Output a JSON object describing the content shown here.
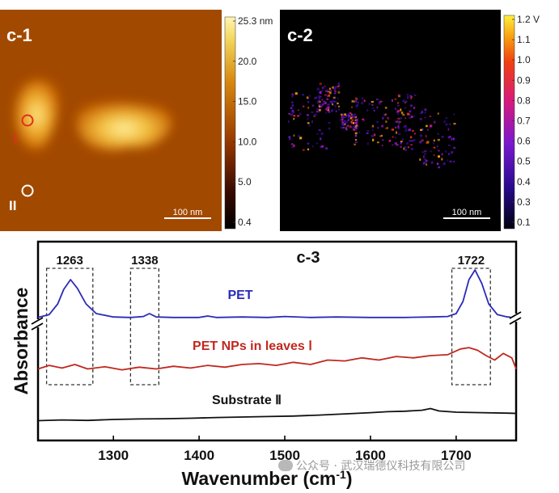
{
  "panels": {
    "c1": {
      "label": "c-1",
      "colorbar_ticks": [
        "25.3 nm",
        "20.0",
        "15.0",
        "10.0",
        "5.0",
        "0.4"
      ],
      "scalebar": "100 nm",
      "markers": [
        {
          "label": "I",
          "color": "#e0301e"
        },
        {
          "label": "II",
          "color": "#ffffff"
        }
      ]
    },
    "c2": {
      "label": "c-2",
      "colorbar_ticks": [
        "1.2 V",
        "1.1",
        "1.0",
        "0.9",
        "0.8",
        "0.7",
        "0.6",
        "0.5",
        "0.4",
        "0.3",
        "0.1"
      ],
      "scalebar": "100 nm"
    }
  },
  "chart_data": {
    "type": "line",
    "title": "c-3",
    "xlabel": "Wavenumber (cm",
    "xlabel_sup": "-1",
    "xlabel_close": ")",
    "ylabel": "Absorbance",
    "xlim": [
      1212,
      1770
    ],
    "xticks": [
      "1300",
      "1400",
      "1500",
      "1600",
      "1700"
    ],
    "y_axis_break": true,
    "peak_boxes": [
      {
        "label": "1263",
        "x_range": [
          1222,
          1276
        ]
      },
      {
        "label": "1338",
        "x_range": [
          1320,
          1353
        ]
      },
      {
        "label": "1722",
        "x_range": [
          1695,
          1740
        ]
      }
    ],
    "series": [
      {
        "name": "PET",
        "color": "#2b2bb8",
        "x": [
          1212,
          1225,
          1235,
          1242,
          1250,
          1258,
          1268,
          1280,
          1300,
          1320,
          1335,
          1342,
          1350,
          1370,
          1400,
          1410,
          1420,
          1450,
          1480,
          1500,
          1530,
          1560,
          1600,
          1640,
          1670,
          1690,
          1700,
          1708,
          1715,
          1722,
          1730,
          1738,
          1748,
          1760,
          1770
        ],
        "y": [
          0.02,
          0.08,
          0.3,
          0.6,
          0.8,
          0.62,
          0.3,
          0.1,
          0.03,
          0.02,
          0.04,
          0.1,
          0.03,
          0.02,
          0.02,
          0.05,
          0.02,
          0.03,
          0.02,
          0.04,
          0.02,
          0.03,
          0.02,
          0.02,
          0.03,
          0.04,
          0.1,
          0.35,
          0.8,
          1.0,
          0.72,
          0.3,
          0.08,
          0.03,
          0.02
        ]
      },
      {
        "name": "PET NPs in leaves Ⅰ",
        "color": "#c0281f",
        "x": [
          1212,
          1225,
          1240,
          1255,
          1270,
          1290,
          1310,
          1330,
          1350,
          1370,
          1390,
          1410,
          1430,
          1450,
          1470,
          1490,
          1510,
          1530,
          1550,
          1570,
          1590,
          1610,
          1630,
          1650,
          1670,
          1690,
          1705,
          1715,
          1725,
          1735,
          1745,
          1755,
          1765,
          1770
        ],
        "y": [
          0.1,
          0.18,
          0.12,
          0.2,
          0.1,
          0.15,
          0.08,
          0.14,
          0.1,
          0.16,
          0.12,
          0.18,
          0.14,
          0.2,
          0.22,
          0.18,
          0.25,
          0.2,
          0.3,
          0.28,
          0.35,
          0.3,
          0.38,
          0.35,
          0.4,
          0.42,
          0.55,
          0.58,
          0.52,
          0.4,
          0.3,
          0.45,
          0.35,
          0.1
        ]
      },
      {
        "name": "Substrate Ⅱ",
        "color": "#111111",
        "x": [
          1212,
          1240,
          1270,
          1300,
          1330,
          1360,
          1390,
          1420,
          1450,
          1480,
          1510,
          1540,
          1570,
          1600,
          1620,
          1640,
          1660,
          1670,
          1680,
          1700,
          1730,
          1760,
          1770
        ],
        "y": [
          0.05,
          0.08,
          0.06,
          0.1,
          0.12,
          0.13,
          0.15,
          0.18,
          0.2,
          0.22,
          0.24,
          0.28,
          0.33,
          0.38,
          0.42,
          0.44,
          0.48,
          0.55,
          0.45,
          0.4,
          0.38,
          0.36,
          0.35
        ]
      }
    ]
  }
}
